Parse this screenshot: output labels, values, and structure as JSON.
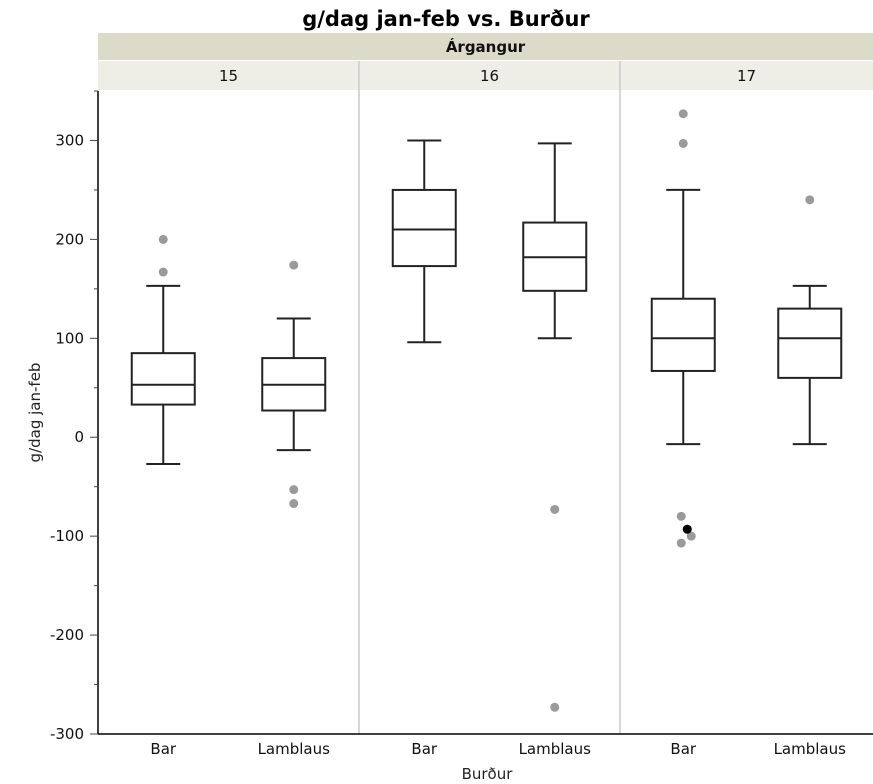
{
  "chart_data": {
    "type": "box",
    "title": "g/dag jan-feb vs. Burður",
    "ylabel": "g/dag jan-feb",
    "xlabel": "Burður",
    "facet_title": "Árgangur",
    "ylim": [
      -300,
      350
    ],
    "yticks": [
      -300,
      -200,
      -100,
      0,
      100,
      200,
      300
    ],
    "categories": [
      "Bar",
      "Lamblaus"
    ],
    "panels": [
      {
        "label": "15",
        "boxes": [
          {
            "category": "Bar",
            "whisker_low": -27,
            "q1": 33,
            "median": 53,
            "q3": 85,
            "whisker_high": 153,
            "outliers": [
              200,
              167
            ]
          },
          {
            "category": "Lamblaus",
            "whisker_low": -13,
            "q1": 27,
            "median": 53,
            "q3": 80,
            "whisker_high": 120,
            "outliers": [
              174,
              -53,
              -67
            ]
          }
        ]
      },
      {
        "label": "16",
        "boxes": [
          {
            "category": "Bar",
            "whisker_low": 96,
            "q1": 173,
            "median": 210,
            "q3": 250,
            "whisker_high": 300,
            "outliers": []
          },
          {
            "category": "Lamblaus",
            "whisker_low": 100,
            "q1": 148,
            "median": 182,
            "q3": 217,
            "whisker_high": 297,
            "outliers": [
              -73,
              -273
            ]
          }
        ]
      },
      {
        "label": "17",
        "boxes": [
          {
            "category": "Bar",
            "whisker_low": -7,
            "q1": 67,
            "median": 100,
            "q3": 140,
            "whisker_high": 250,
            "outliers": [
              327,
              297,
              -80,
              -93,
              -100,
              -107
            ]
          },
          {
            "category": "Lamblaus",
            "whisker_low": -7,
            "q1": 60,
            "median": 100,
            "q3": 130,
            "whisker_high": 153,
            "outliers": [
              240
            ]
          }
        ]
      }
    ],
    "colors": {
      "box": "#222222",
      "outlier": "#9a9a9a",
      "highlighted_outlier": "#000000",
      "group_header_bg": "#dcdac9",
      "panel_header_bg": "#eeede6",
      "panel_divider": "#c8c8c8"
    }
  }
}
